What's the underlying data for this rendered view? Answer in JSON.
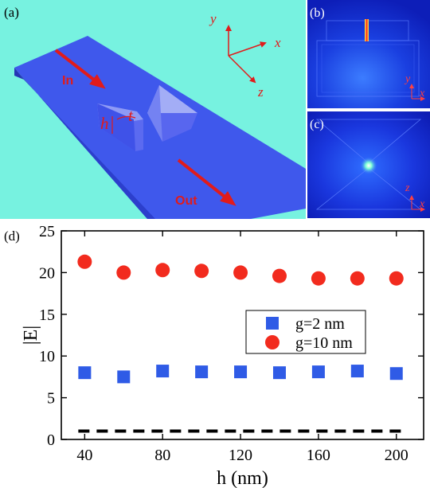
{
  "panels": {
    "a": {
      "label": "(a)",
      "in_label": "In",
      "out_label": "Out",
      "h_label": "h",
      "t_label": "t",
      "axes": {
        "y": "y",
        "x": "x",
        "z": "z"
      },
      "colors": {
        "background": "#77f2e0",
        "waveguide": "#3a52e8",
        "arrow": "#e11b1b"
      }
    },
    "b": {
      "label": "(b)",
      "axis_v": "y",
      "axis_h": "x"
    },
    "c": {
      "label": "(c)",
      "axis_v": "z",
      "axis_h": "x"
    },
    "d": {
      "label": "(d)"
    }
  },
  "chart_data": {
    "type": "scatter",
    "xlabel": "h (nm)",
    "ylabel": "|E|",
    "xlim": [
      28,
      214
    ],
    "ylim": [
      0,
      25
    ],
    "xticks": [
      40,
      80,
      120,
      160,
      200
    ],
    "yticks": [
      0,
      5,
      10,
      15,
      20,
      25
    ],
    "legend_position": "center-right",
    "series": [
      {
        "name": "g=2 nm",
        "marker": "square",
        "color": "#2f5be6",
        "x": [
          40,
          60,
          80,
          100,
          120,
          140,
          160,
          180,
          200
        ],
        "y": [
          8.0,
          7.5,
          8.2,
          8.1,
          8.1,
          8.0,
          8.1,
          8.2,
          7.9
        ]
      },
      {
        "name": "g=10 nm",
        "marker": "circle",
        "color": "#f22b1e",
        "x": [
          40,
          60,
          80,
          100,
          120,
          140,
          160,
          180,
          200
        ],
        "y": [
          21.3,
          20.0,
          20.3,
          20.2,
          20.0,
          19.6,
          19.3,
          19.3,
          19.3
        ]
      }
    ],
    "reference_line": {
      "style": "dashed",
      "color": "#000000",
      "y": 1.0,
      "x": [
        40,
        200
      ]
    }
  }
}
